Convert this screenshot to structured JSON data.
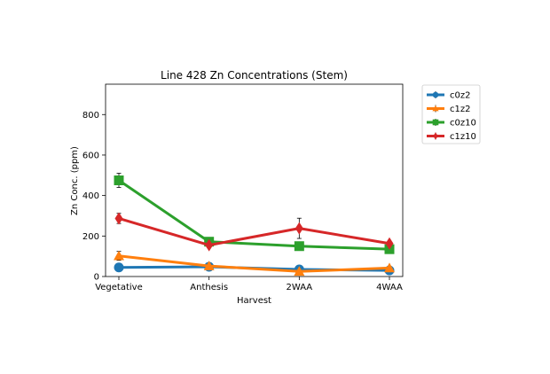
{
  "chart_data": {
    "type": "line",
    "title": "Line 428 Zn Concentrations (Stem)",
    "xlabel": "Harvest",
    "ylabel": "Zn Conc. (ppm)",
    "categories": [
      "Vegetative",
      "Anthesis",
      "2WAA",
      "4WAA"
    ],
    "ylim": [
      0,
      950
    ],
    "yticks": [
      0,
      200,
      400,
      600,
      800
    ],
    "grid": false,
    "legend_position": "outside-top-right",
    "series": [
      {
        "name": "c0z2",
        "color": "#1f77b4",
        "marker": "circle",
        "values": [
          45,
          48,
          35,
          30
        ],
        "errors": [
          5,
          5,
          4,
          4
        ]
      },
      {
        "name": "c1z2",
        "color": "#ff7f0e",
        "marker": "triangle-up",
        "values": [
          102,
          52,
          25,
          42
        ],
        "errors": [
          22,
          6,
          4,
          5
        ]
      },
      {
        "name": "c0z10",
        "color": "#2ca02c",
        "marker": "square",
        "values": [
          475,
          172,
          150,
          135
        ],
        "errors": [
          35,
          10,
          12,
          10
        ]
      },
      {
        "name": "c1z10",
        "color": "#d62728",
        "marker": "thin-diamond",
        "values": [
          287,
          155,
          238,
          163
        ],
        "errors": [
          25,
          8,
          50,
          10
        ]
      }
    ]
  }
}
